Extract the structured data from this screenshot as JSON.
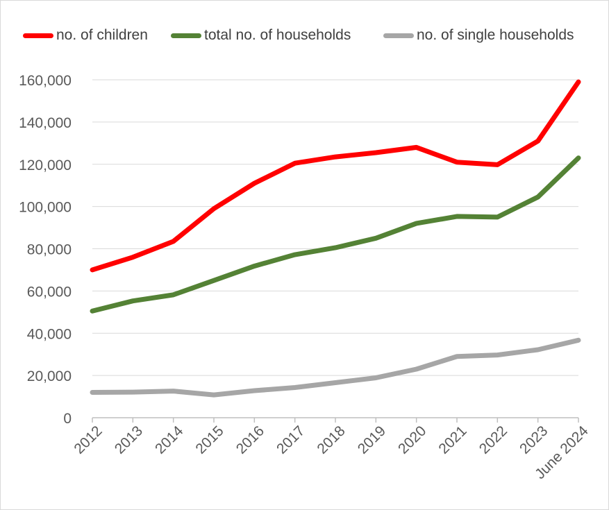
{
  "chart_data": {
    "type": "line",
    "title": "",
    "xlabel": "",
    "ylabel": "",
    "categories": [
      "2012",
      "2013",
      "2014",
      "2015",
      "2016",
      "2017",
      "2018",
      "2019",
      "2020",
      "2021",
      "2022",
      "2023",
      "June 2024"
    ],
    "series": [
      {
        "name": "no. of children",
        "color": "#ff0000",
        "values": [
          70000,
          76000,
          83500,
          99000,
          111000,
          120500,
          123500,
          125500,
          128000,
          121000,
          119800,
          131000,
          159000
        ]
      },
      {
        "name": "total no. of households",
        "color": "#548235",
        "values": [
          50500,
          55300,
          58200,
          65000,
          71800,
          77200,
          80500,
          85000,
          92000,
          95300,
          95000,
          104500,
          123000
        ]
      },
      {
        "name": "no. of single households",
        "color": "#a6a6a6",
        "values": [
          12000,
          12100,
          12600,
          10800,
          12800,
          14300,
          16600,
          18900,
          23000,
          29000,
          29700,
          32200,
          36700
        ]
      }
    ],
    "ylim": [
      0,
      160000
    ],
    "yticks": [
      0,
      20000,
      40000,
      60000,
      80000,
      100000,
      120000,
      140000,
      160000
    ],
    "ytick_labels": [
      "0",
      "20,000",
      "40,000",
      "60,000",
      "80,000",
      "100,000",
      "120,000",
      "140,000",
      "160,000"
    ],
    "grid": true,
    "legend_position": "top"
  }
}
